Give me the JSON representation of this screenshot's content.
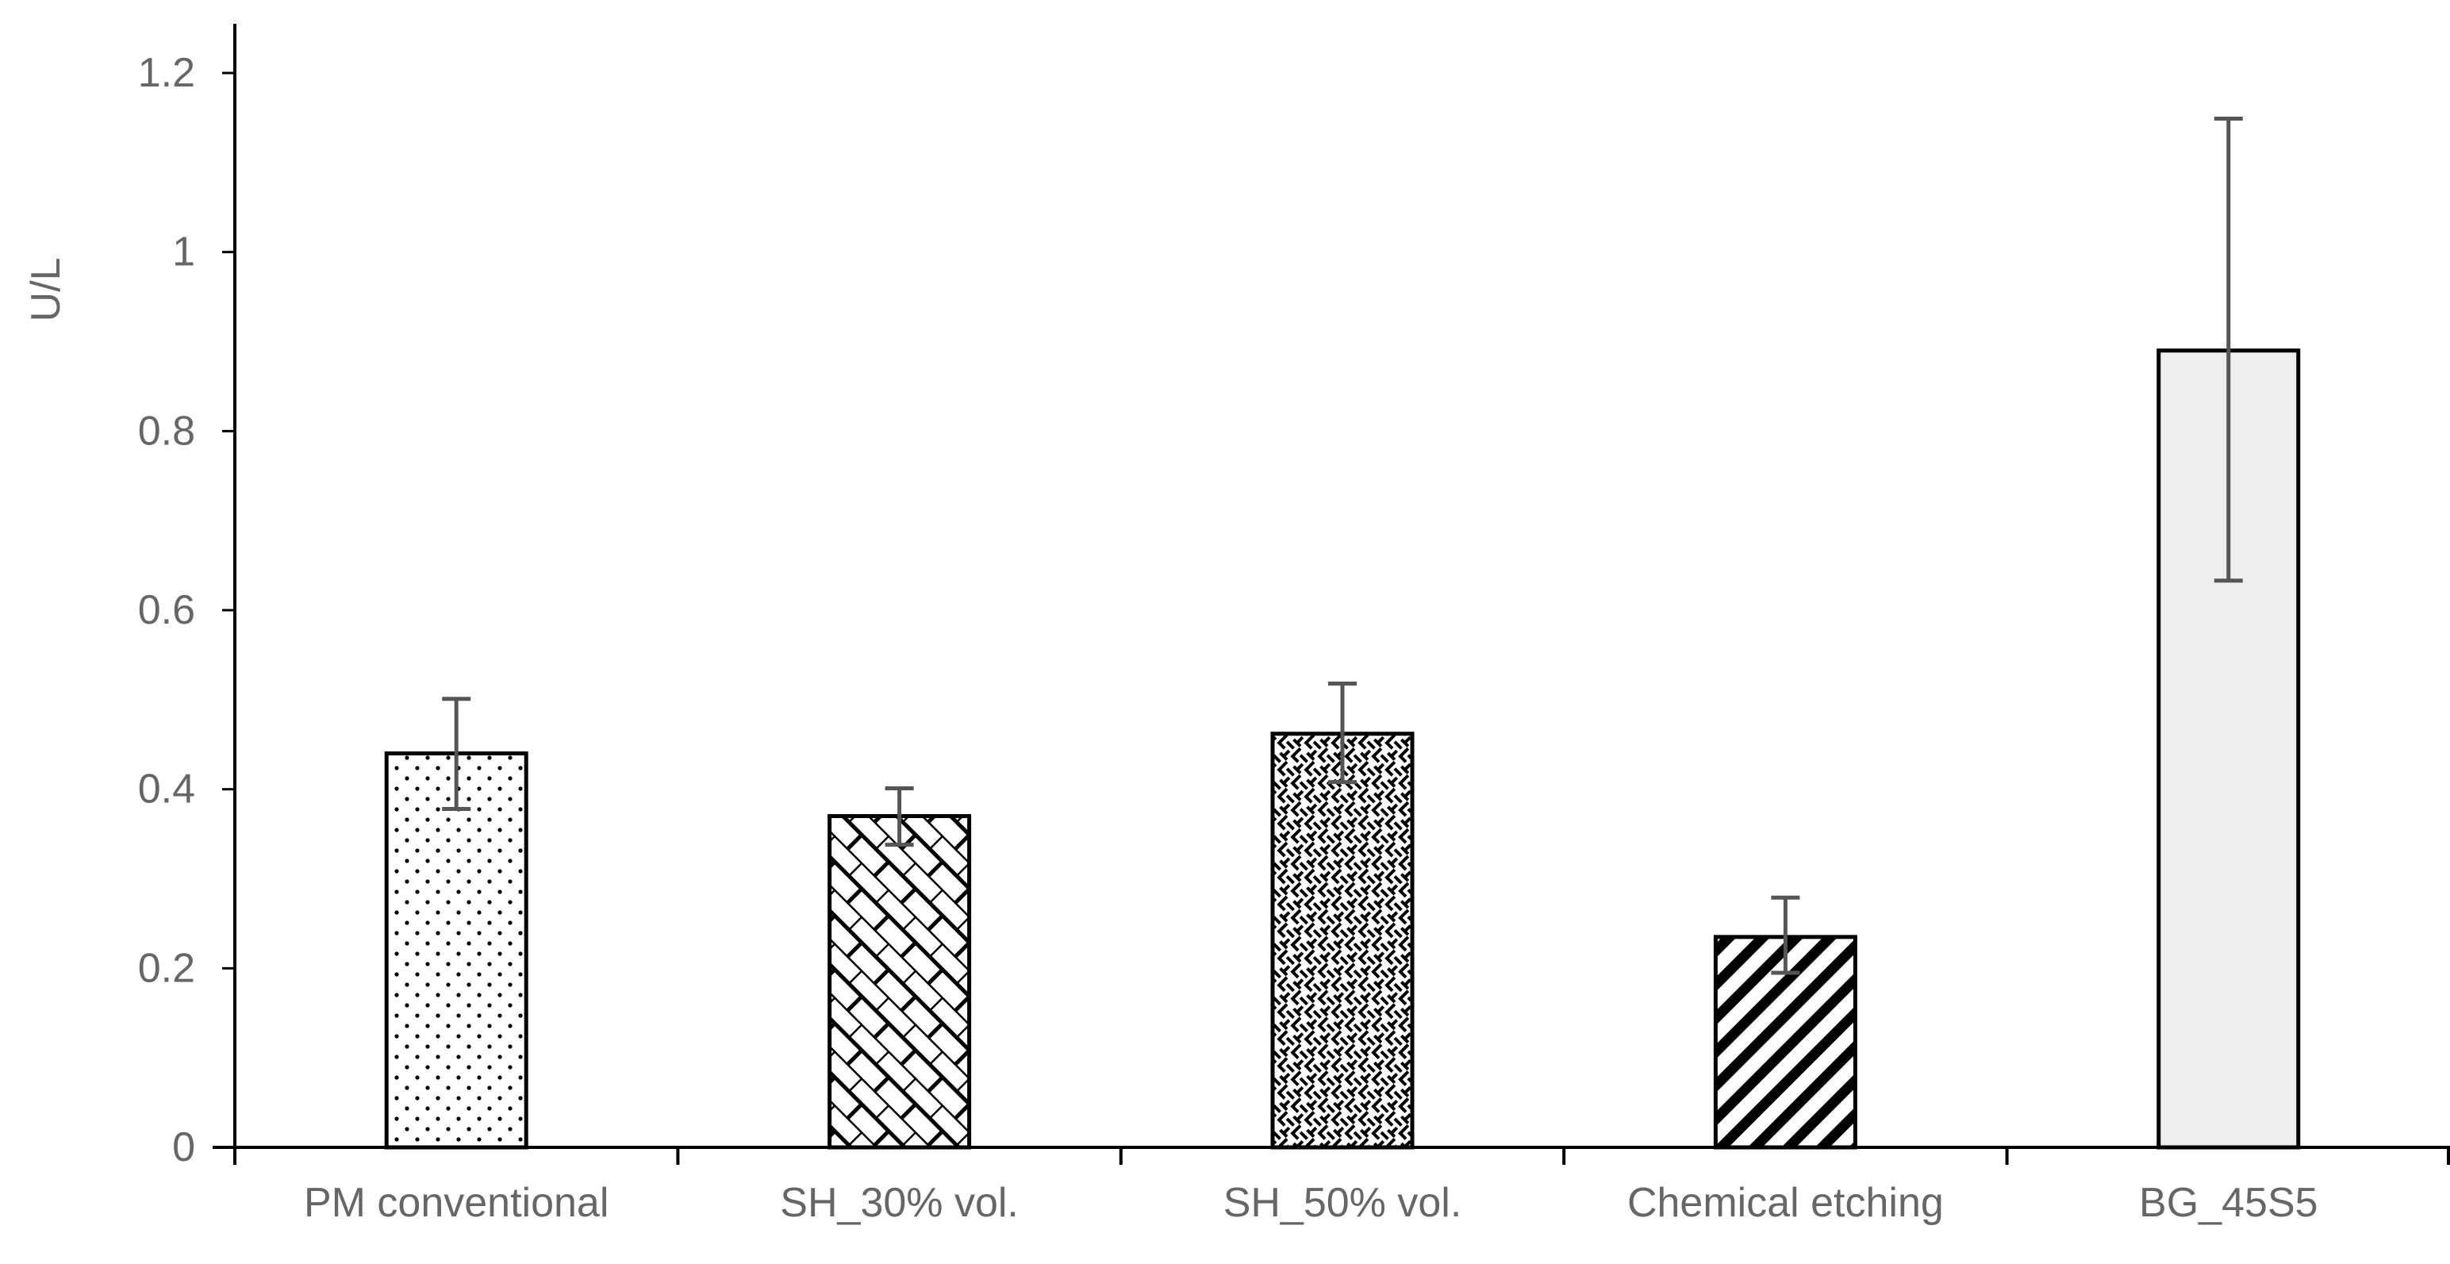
{
  "chart_data": {
    "type": "bar",
    "title": "",
    "xlabel": "",
    "ylabel": "U/L",
    "ylim": [
      0,
      1.2
    ],
    "yticks": [
      0,
      0.2,
      0.4,
      0.6,
      0.8,
      1,
      1.2
    ],
    "ytick_labels": [
      "0",
      "0.2",
      "0.4",
      "0.6",
      "0.8",
      "1",
      "1.2"
    ],
    "grid": false,
    "legend": "none",
    "categories": [
      "PM conventional",
      "SH_30% vol.",
      "SH_50% vol.",
      "Chemical etching",
      "BG_45S5"
    ],
    "values": [
      0.44,
      0.37,
      0.462,
      0.235,
      0.89
    ],
    "error_lower": [
      0.378,
      0.338,
      0.408,
      0.195,
      0.633
    ],
    "error_upper": [
      0.501,
      0.401,
      0.518,
      0.279,
      1.149
    ],
    "bar_fills": [
      "dots",
      "brick-diagonal",
      "weave",
      "diagonal-stripes",
      "solid-light-gray"
    ]
  },
  "colors": {
    "axis": "#000000",
    "tick_text": "#666666",
    "bar_edge": "#000000",
    "error_bar": "#555555",
    "solid_fill": "#eeeeee",
    "background": "#ffffff"
  }
}
